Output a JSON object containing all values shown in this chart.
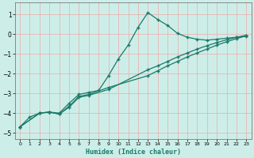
{
  "xlabel": "Humidex (Indice chaleur)",
  "bg_color": "#cdeee8",
  "grid_color": "#e8b4b4",
  "line_color": "#1a7a6a",
  "xlim": [
    -0.5,
    23.5
  ],
  "ylim": [
    -5.3,
    1.6
  ],
  "xticks": [
    0,
    1,
    2,
    3,
    4,
    5,
    6,
    7,
    8,
    9,
    10,
    11,
    12,
    13,
    14,
    15,
    16,
    17,
    18,
    19,
    20,
    21,
    22,
    23
  ],
  "yticks": [
    -5,
    -4,
    -3,
    -2,
    -1,
    0,
    1
  ],
  "line1_x": [
    0,
    1,
    2,
    3,
    4,
    5,
    6,
    7,
    8,
    9,
    10,
    11,
    12,
    13,
    14,
    15,
    16,
    17,
    18,
    19,
    20,
    21,
    22,
    23
  ],
  "line1_y": [
    -4.7,
    -4.2,
    -4.0,
    -3.95,
    -4.0,
    -3.5,
    -3.05,
    -2.95,
    -2.85,
    -2.1,
    -1.25,
    -0.55,
    0.35,
    1.1,
    0.75,
    0.45,
    0.05,
    -0.15,
    -0.25,
    -0.3,
    -0.25,
    -0.2,
    -0.15,
    -0.1
  ],
  "line2_x": [
    0,
    2,
    3,
    4,
    5,
    6,
    7,
    9,
    13,
    14,
    15,
    16,
    17,
    18,
    19,
    20,
    21,
    22,
    23
  ],
  "line2_y": [
    -4.7,
    -4.0,
    -3.95,
    -4.05,
    -3.7,
    -3.2,
    -3.1,
    -2.8,
    -1.8,
    -1.6,
    -1.38,
    -1.15,
    -0.95,
    -0.75,
    -0.58,
    -0.42,
    -0.28,
    -0.15,
    -0.05
  ],
  "line3_x": [
    0,
    2,
    3,
    4,
    5,
    6,
    7,
    9,
    13,
    14,
    15,
    16,
    17,
    18,
    19,
    20,
    21,
    22,
    23
  ],
  "line3_y": [
    -4.7,
    -4.0,
    -3.95,
    -4.05,
    -3.65,
    -3.15,
    -3.05,
    -2.7,
    -2.1,
    -1.85,
    -1.6,
    -1.38,
    -1.15,
    -0.95,
    -0.75,
    -0.55,
    -0.38,
    -0.22,
    -0.08
  ]
}
